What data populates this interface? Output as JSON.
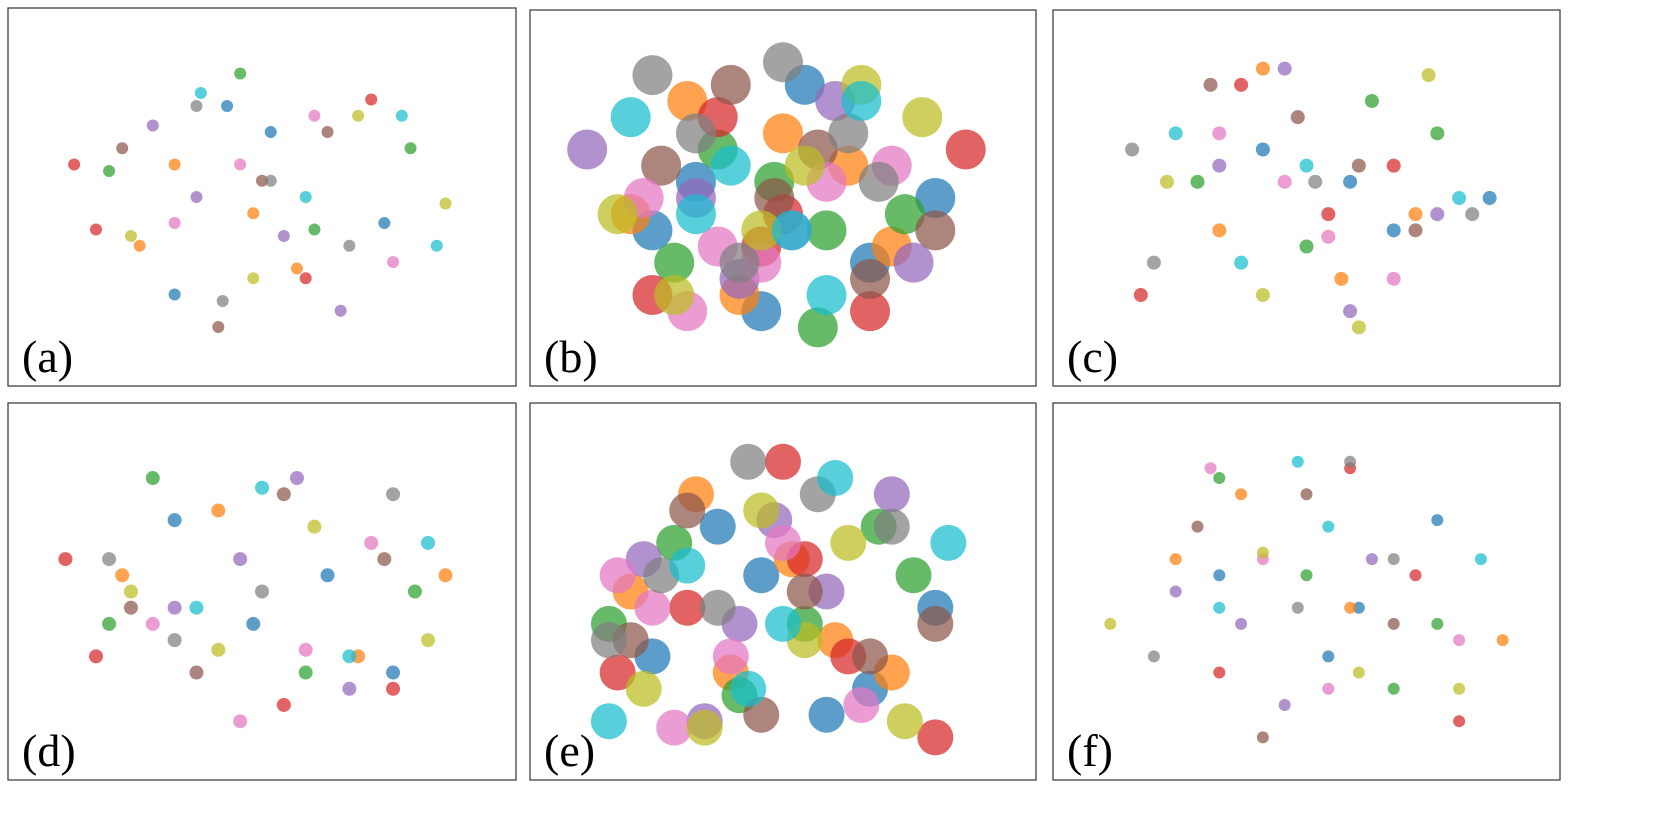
{
  "chart_data": [
    {
      "type": "scatter",
      "title": "(a)",
      "xlim": [
        0,
        100
      ],
      "ylim": [
        0,
        100
      ],
      "marker_radius": 6,
      "series": [
        {
          "color": "#1f77b4",
          "x": [
            42,
            78,
            52,
            30
          ],
          "y": [
            78,
            42,
            70,
            20
          ]
        },
        {
          "color": "#ff7f0e",
          "x": [
            30,
            22,
            58,
            48
          ],
          "y": [
            60,
            35,
            28,
            45
          ]
        },
        {
          "color": "#2ca02c",
          "x": [
            84,
            45,
            15,
            62
          ],
          "y": [
            65,
            88,
            58,
            40
          ]
        },
        {
          "color": "#d62728",
          "x": [
            7,
            12,
            60,
            75
          ],
          "y": [
            60,
            40,
            25,
            80
          ]
        },
        {
          "color": "#9467bd",
          "x": [
            35,
            55,
            68,
            25
          ],
          "y": [
            50,
            38,
            15,
            72
          ]
        },
        {
          "color": "#8c564b",
          "x": [
            40,
            18,
            65,
            50
          ],
          "y": [
            10,
            65,
            70,
            55
          ]
        },
        {
          "color": "#e377c2",
          "x": [
            80,
            30,
            62,
            45
          ],
          "y": [
            30,
            42,
            75,
            60
          ]
        },
        {
          "color": "#7f7f7f",
          "x": [
            41,
            52,
            70,
            35
          ],
          "y": [
            18,
            55,
            35,
            78
          ]
        },
        {
          "color": "#bcbd22",
          "x": [
            20,
            92,
            72,
            48
          ],
          "y": [
            38,
            48,
            75,
            25
          ]
        },
        {
          "color": "#17becf",
          "x": [
            82,
            36,
            60,
            90
          ],
          "y": [
            75,
            82,
            50,
            35
          ]
        }
      ]
    },
    {
      "type": "scatter",
      "title": "(b)",
      "xlim": [
        0,
        100
      ],
      "ylim": [
        0,
        100
      ],
      "marker_radius": 20,
      "series": [
        {
          "color": "#1f77b4",
          "x": [
            30,
            55,
            70,
            45,
            20,
            85
          ],
          "y": [
            55,
            85,
            30,
            15,
            40,
            50
          ]
        },
        {
          "color": "#ff7f0e",
          "x": [
            40,
            15,
            65,
            50,
            28,
            75
          ],
          "y": [
            20,
            45,
            60,
            70,
            80,
            35
          ]
        },
        {
          "color": "#2ca02c",
          "x": [
            58,
            25,
            78,
            35,
            60,
            48
          ],
          "y": [
            10,
            30,
            45,
            65,
            40,
            55
          ]
        },
        {
          "color": "#d62728",
          "x": [
            92,
            35,
            50,
            20,
            70,
            45
          ],
          "y": [
            65,
            75,
            45,
            20,
            15,
            35
          ]
        },
        {
          "color": "#9467bd",
          "x": [
            5,
            40,
            62,
            30,
            80,
            52
          ],
          "y": [
            65,
            25,
            80,
            50,
            30,
            40
          ]
        },
        {
          "color": "#8c564b",
          "x": [
            48,
            22,
            70,
            38,
            58,
            85
          ],
          "y": [
            50,
            60,
            25,
            85,
            65,
            40
          ]
        },
        {
          "color": "#e377c2",
          "x": [
            35,
            60,
            18,
            75,
            45,
            28
          ],
          "y": [
            35,
            55,
            50,
            60,
            30,
            15
          ]
        },
        {
          "color": "#7f7f7f",
          "x": [
            20,
            50,
            65,
            40,
            30,
            72
          ],
          "y": [
            88,
            92,
            70,
            30,
            70,
            55
          ]
        },
        {
          "color": "#bcbd22",
          "x": [
            82,
            55,
            25,
            45,
            68,
            12
          ],
          "y": [
            75,
            60,
            20,
            40,
            85,
            45
          ]
        },
        {
          "color": "#17becf",
          "x": [
            15,
            38,
            52,
            68,
            30,
            60
          ],
          "y": [
            75,
            60,
            40,
            80,
            45,
            20
          ]
        }
      ]
    },
    {
      "type": "scatter",
      "title": "(c)",
      "xlim": [
        0,
        100
      ],
      "ylim": [
        0,
        100
      ],
      "marker_radius": 7,
      "series": [
        {
          "color": "#1f77b4",
          "x": [
            92,
            60,
            70,
            40
          ],
          "y": [
            50,
            55,
            40,
            65
          ]
        },
        {
          "color": "#ff7f0e",
          "x": [
            40,
            75,
            58,
            30
          ],
          "y": [
            90,
            45,
            25,
            40
          ]
        },
        {
          "color": "#2ca02c",
          "x": [
            80,
            25,
            50,
            65
          ],
          "y": [
            70,
            55,
            35,
            80
          ]
        },
        {
          "color": "#d62728",
          "x": [
            12,
            55,
            35,
            70
          ],
          "y": [
            20,
            45,
            85,
            60
          ]
        },
        {
          "color": "#9467bd",
          "x": [
            60,
            30,
            80,
            45
          ],
          "y": [
            15,
            60,
            45,
            90
          ]
        },
        {
          "color": "#8c564b",
          "x": [
            28,
            48,
            62,
            75
          ],
          "y": [
            85,
            75,
            60,
            40
          ]
        },
        {
          "color": "#e377c2",
          "x": [
            70,
            45,
            30,
            55
          ],
          "y": [
            25,
            55,
            70,
            38
          ]
        },
        {
          "color": "#7f7f7f",
          "x": [
            15,
            10,
            52,
            88
          ],
          "y": [
            30,
            65,
            55,
            45
          ]
        },
        {
          "color": "#bcbd22",
          "x": [
            78,
            40,
            62,
            18
          ],
          "y": [
            88,
            20,
            10,
            55
          ]
        },
        {
          "color": "#17becf",
          "x": [
            50,
            20,
            85,
            35
          ],
          "y": [
            60,
            70,
            50,
            30
          ]
        }
      ]
    },
    {
      "type": "scatter",
      "title": "(d)",
      "xlim": [
        0,
        100
      ],
      "ylim": [
        0,
        100
      ],
      "marker_radius": 7,
      "series": [
        {
          "color": "#1f77b4",
          "x": [
            65,
            30,
            48,
            80
          ],
          "y": [
            55,
            72,
            40,
            25
          ]
        },
        {
          "color": "#ff7f0e",
          "x": [
            40,
            18,
            72,
            92
          ],
          "y": [
            75,
            55,
            30,
            55
          ]
        },
        {
          "color": "#2ca02c",
          "x": [
            85,
            15,
            60,
            25
          ],
          "y": [
            50,
            40,
            25,
            85
          ]
        },
        {
          "color": "#d62728",
          "x": [
            12,
            80,
            5,
            55
          ],
          "y": [
            30,
            20,
            60,
            15
          ]
        },
        {
          "color": "#9467bd",
          "x": [
            70,
            45,
            30,
            58
          ],
          "y": [
            20,
            60,
            45,
            85
          ]
        },
        {
          "color": "#8c564b",
          "x": [
            35,
            55,
            78,
            20
          ],
          "y": [
            25,
            80,
            60,
            45
          ]
        },
        {
          "color": "#e377c2",
          "x": [
            60,
            25,
            75,
            45
          ],
          "y": [
            32,
            40,
            65,
            10
          ]
        },
        {
          "color": "#7f7f7f",
          "x": [
            30,
            80,
            15,
            50
          ],
          "y": [
            35,
            80,
            60,
            50
          ]
        },
        {
          "color": "#bcbd22",
          "x": [
            88,
            20,
            40,
            62
          ],
          "y": [
            35,
            50,
            32,
            70
          ]
        },
        {
          "color": "#17becf",
          "x": [
            88,
            50,
            35,
            70
          ],
          "y": [
            65,
            82,
            45,
            30
          ]
        }
      ]
    },
    {
      "type": "scatter",
      "title": "(e)",
      "xlim": [
        0,
        100
      ],
      "ylim": [
        0,
        100
      ],
      "marker_radius": 18,
      "series": [
        {
          "color": "#1f77b4",
          "x": [
            20,
            45,
            70,
            85,
            35,
            60
          ],
          "y": [
            30,
            55,
            20,
            45,
            70,
            12
          ]
        },
        {
          "color": "#ff7f0e",
          "x": [
            15,
            38,
            62,
            30,
            52,
            75
          ],
          "y": [
            50,
            25,
            35,
            80,
            60,
            25
          ]
        },
        {
          "color": "#2ca02c",
          "x": [
            25,
            55,
            72,
            10,
            40,
            80
          ],
          "y": [
            65,
            40,
            70,
            40,
            18,
            55
          ]
        },
        {
          "color": "#d62728",
          "x": [
            50,
            85,
            28,
            65,
            12,
            55
          ],
          "y": [
            90,
            5,
            45,
            30,
            25,
            60
          ]
        },
        {
          "color": "#9467bd",
          "x": [
            40,
            18,
            60,
            32,
            75,
            48
          ],
          "y": [
            40,
            60,
            50,
            10,
            80,
            72
          ]
        },
        {
          "color": "#8c564b",
          "x": [
            70,
            28,
            45,
            85,
            15,
            55
          ],
          "y": [
            30,
            75,
            12,
            40,
            35,
            50
          ]
        },
        {
          "color": "#e377c2",
          "x": [
            25,
            50,
            12,
            68,
            38,
            20
          ],
          "y": [
            8,
            65,
            55,
            15,
            30,
            45
          ]
        },
        {
          "color": "#7f7f7f",
          "x": [
            58,
            75,
            22,
            42,
            35,
            10
          ],
          "y": [
            80,
            70,
            55,
            90,
            45,
            35
          ]
        },
        {
          "color": "#bcbd22",
          "x": [
            45,
            32,
            65,
            18,
            55,
            78
          ],
          "y": [
            75,
            8,
            65,
            20,
            35,
            10
          ]
        },
        {
          "color": "#17becf",
          "x": [
            10,
            42,
            62,
            28,
            88,
            50
          ],
          "y": [
            10,
            20,
            85,
            58,
            65,
            40
          ]
        }
      ]
    },
    {
      "type": "scatter",
      "title": "(f)",
      "xlim": [
        0,
        100
      ],
      "ylim": [
        0,
        100
      ],
      "marker_radius": 6,
      "series": [
        {
          "color": "#1f77b4",
          "x": [
            80,
            62,
            55,
            30
          ],
          "y": [
            72,
            45,
            30,
            55
          ]
        },
        {
          "color": "#ff7f0e",
          "x": [
            95,
            35,
            60,
            20
          ],
          "y": [
            35,
            80,
            45,
            60
          ]
        },
        {
          "color": "#2ca02c",
          "x": [
            80,
            50,
            30,
            70
          ],
          "y": [
            40,
            55,
            85,
            20
          ]
        },
        {
          "color": "#d62728",
          "x": [
            60,
            85,
            30,
            75
          ],
          "y": [
            88,
            10,
            25,
            55
          ]
        },
        {
          "color": "#9467bd",
          "x": [
            45,
            20,
            65,
            35
          ],
          "y": [
            15,
            50,
            60,
            40
          ]
        },
        {
          "color": "#8c564b",
          "x": [
            25,
            50,
            70,
            40
          ],
          "y": [
            70,
            80,
            40,
            5
          ]
        },
        {
          "color": "#e377c2",
          "x": [
            85,
            28,
            55,
            40
          ],
          "y": [
            35,
            88,
            20,
            60
          ]
        },
        {
          "color": "#7f7f7f",
          "x": [
            15,
            70,
            48,
            60
          ],
          "y": [
            30,
            60,
            45,
            90
          ]
        },
        {
          "color": "#bcbd22",
          "x": [
            62,
            85,
            40,
            5
          ],
          "y": [
            25,
            20,
            62,
            40
          ]
        },
        {
          "color": "#17becf",
          "x": [
            90,
            48,
            55,
            30
          ],
          "y": [
            60,
            90,
            70,
            45
          ]
        }
      ]
    }
  ]
}
